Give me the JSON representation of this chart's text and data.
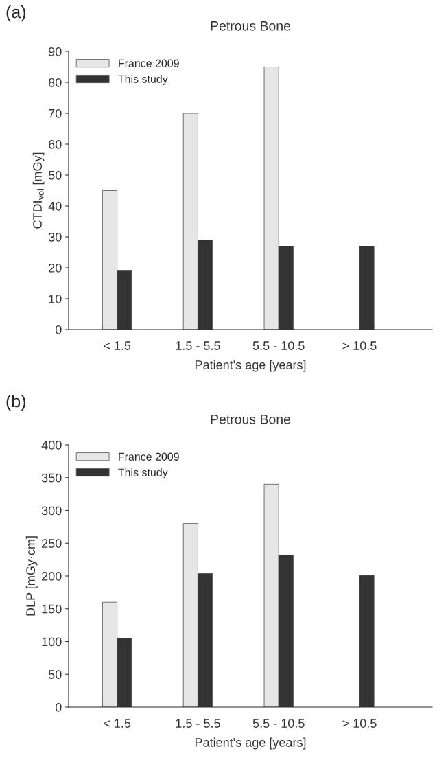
{
  "chart_data": [
    {
      "type": "bar",
      "title": "Petrous Bone",
      "xlabel": "Patient's age [years]",
      "ylabel": "CTDI$_{vol}$ [mGy]",
      "annotations": [
        "(a)"
      ],
      "categories": [
        "< 1.5",
        "1.5 - 5.5",
        "5.5 - 10.5",
        "> 10.5"
      ],
      "series": [
        {
          "name": "France 2009",
          "color": "#e6e6e6",
          "values": [
            45,
            70,
            85,
            null
          ]
        },
        {
          "name": "This study",
          "color": "#333333",
          "values": [
            19,
            29,
            27,
            27
          ]
        }
      ],
      "ylim": [
        0,
        90
      ],
      "yticks": [
        0,
        10,
        20,
        30,
        40,
        50,
        60,
        70,
        80,
        90
      ],
      "legend": "top left",
      "grid": false
    },
    {
      "type": "bar",
      "title": "Petrous Bone",
      "xlabel": "Patient's age [years]",
      "ylabel": "DLP [mGy·cm]",
      "annotations": [
        "(b)"
      ],
      "categories": [
        "< 1.5",
        "1.5 - 5.5",
        "5.5 - 10.5",
        "> 10.5"
      ],
      "series": [
        {
          "name": "France 2009",
          "color": "#e6e6e6",
          "values": [
            160,
            280,
            340,
            null
          ]
        },
        {
          "name": "This study",
          "color": "#333333",
          "values": [
            105,
            204,
            232,
            201
          ]
        }
      ],
      "ylim": [
        0,
        400
      ],
      "yticks": [
        0,
        50,
        100,
        150,
        200,
        250,
        300,
        350,
        400
      ],
      "legend": "top left",
      "grid": false
    }
  ]
}
